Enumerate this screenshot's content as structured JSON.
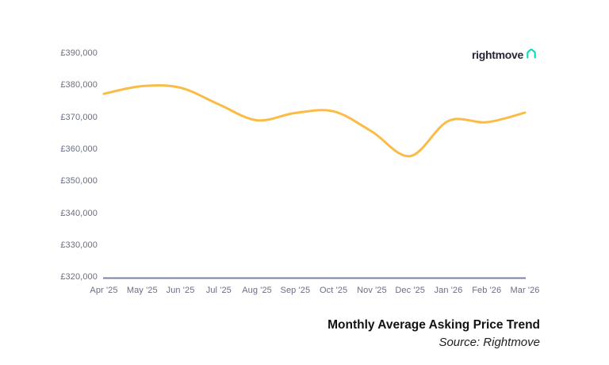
{
  "logo": {
    "text": "rightmove",
    "icon": "house-icon",
    "icon_color": "#00DEB6",
    "text_color": "#262637"
  },
  "footer": {
    "title": "Monthly Average Asking Price Trend",
    "source": "Source: Rightmove"
  },
  "chart_data": {
    "type": "line",
    "title": "Monthly Average Asking Price Trend",
    "xlabel": "",
    "ylabel": "",
    "x": [
      "Apr '25",
      "May '25",
      "Jun '25",
      "Jul '25",
      "Aug '25",
      "Sep '25",
      "Oct '25",
      "Nov '25",
      "Dec '25",
      "Jan '26",
      "Feb '26",
      "Mar '26"
    ],
    "series": [
      {
        "name": "Monthly average asking price",
        "color": "#FBBC47",
        "values": [
          377300,
          379700,
          379200,
          374000,
          369000,
          371300,
          371800,
          365500,
          357800,
          368800,
          368400,
          371400
        ]
      }
    ],
    "y_ticks": [
      390000,
      380000,
      370000,
      360000,
      350000,
      340000,
      330000,
      320000
    ],
    "y_tick_labels": [
      "£390,000",
      "£380,000",
      "£370,000",
      "£360,000",
      "£350,000",
      "£340,000",
      "£330,000",
      "£320,000"
    ],
    "ylim": [
      320000,
      390000
    ],
    "grid": false,
    "legend": "none",
    "axis_color": "#7C829B",
    "tick_label_color": "#696F85"
  }
}
